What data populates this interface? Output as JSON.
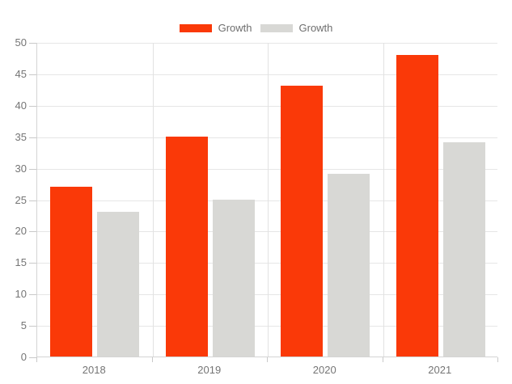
{
  "chart_data": {
    "type": "bar",
    "title": "",
    "xlabel": "",
    "ylabel": "",
    "categories": [
      "2018",
      "2019",
      "2020",
      "2021"
    ],
    "series": [
      {
        "name": "Growth",
        "color": "#fa3908",
        "values": [
          27,
          35,
          43,
          48
        ]
      },
      {
        "name": "Growth",
        "color": "#d8d8d5",
        "values": [
          23,
          25,
          29,
          34
        ]
      }
    ],
    "ylim": [
      0,
      50
    ],
    "y_tick_step": 5,
    "y_ticks": [
      0,
      5,
      10,
      15,
      20,
      25,
      30,
      35,
      40,
      45,
      50
    ],
    "legend_position": "top-center",
    "grid": true
  },
  "colors": {
    "background": "#ffffff",
    "grid_horizontal": "#e6e6e6",
    "grid_vertical": "#e2e2e2",
    "axis_line": "#d4d4d4",
    "tick_text": "#757575",
    "legend_text": "#6e6e6e"
  }
}
